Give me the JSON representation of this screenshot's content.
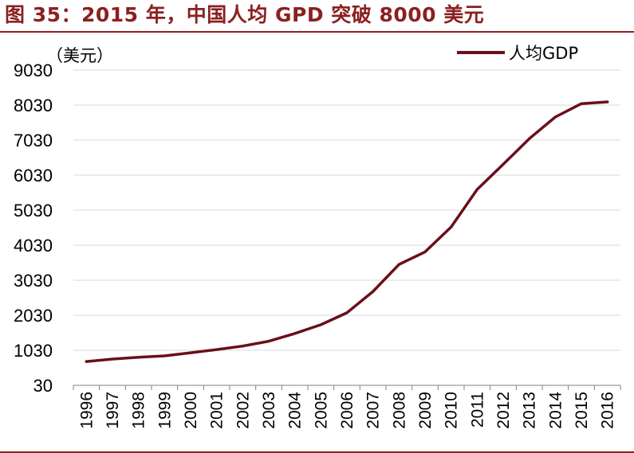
{
  "header": {
    "title": "图 35：2015 年，中国人均 GPD 突破 8000 美元"
  },
  "chart_data": {
    "type": "line",
    "unit_label": "（美元）",
    "x": [
      "1996",
      "1997",
      "1998",
      "1999",
      "2000",
      "2001",
      "2002",
      "2003",
      "2004",
      "2005",
      "2006",
      "2007",
      "2008",
      "2009",
      "2010",
      "2011",
      "2012",
      "2013",
      "2014",
      "2015",
      "2016"
    ],
    "yticks": [
      "30",
      "1030",
      "2030",
      "3030",
      "4030",
      "5030",
      "6030",
      "7030",
      "8030",
      "9030"
    ],
    "ylim": [
      30,
      9030
    ],
    "grid": true,
    "legend_position": "top-right",
    "series": [
      {
        "name": "人均GDP",
        "color": "#6b0f1a",
        "values": [
          710,
          780,
          830,
          870,
          960,
          1050,
          1150,
          1290,
          1510,
          1760,
          2100,
          2710,
          3480,
          3840,
          4550,
          5620,
          6340,
          7070,
          7690,
          8070,
          8120
        ]
      }
    ]
  }
}
